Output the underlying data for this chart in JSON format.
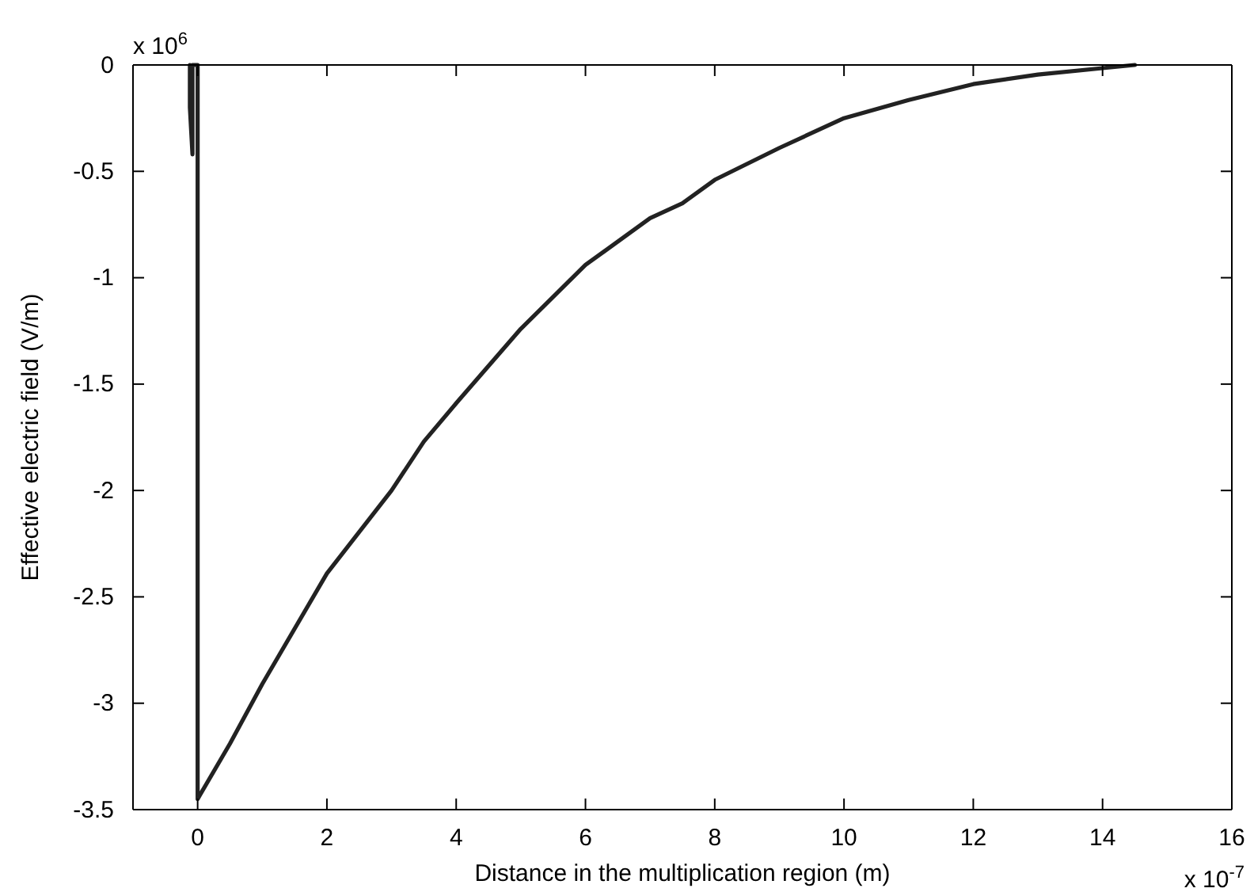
{
  "chart_data": {
    "type": "line",
    "xlabel": "Distance in the multiplication region (m)",
    "ylabel": "Effective electric field (V/m)",
    "annotations": [
      "x 10$^{6}$",
      "x 10$^{-7}$"
    ],
    "xlim": [
      -1,
      16
    ],
    "xticks": [
      0,
      2,
      4,
      6,
      8,
      10,
      12,
      14,
      16
    ],
    "ylim": [
      -3.5,
      0
    ],
    "yticks": [
      -3.5,
      -3,
      -2.5,
      -2,
      -1.5,
      -1,
      -0.5,
      0
    ],
    "grid": false,
    "marker": "none",
    "line_style": "solid",
    "series": [
      {
        "color": "#222222",
        "x": [
          -0.12,
          -0.12,
          -0.08,
          -0.08,
          0,
          0,
          0.5,
          1,
          2,
          3,
          3.5,
          4,
          5,
          6,
          7,
          7.5,
          8,
          9,
          10,
          11,
          12,
          13,
          14,
          14.5
        ],
        "values": [
          0,
          -0.2,
          -0.42,
          0,
          0,
          -3.45,
          -3.19,
          -2.91,
          -2.39,
          -2.0,
          -1.77,
          -1.59,
          -1.24,
          -0.94,
          -0.72,
          -0.65,
          -0.54,
          -0.39,
          -0.25,
          -0.165,
          -0.09,
          -0.045,
          -0.015,
          0
        ]
      }
    ]
  }
}
